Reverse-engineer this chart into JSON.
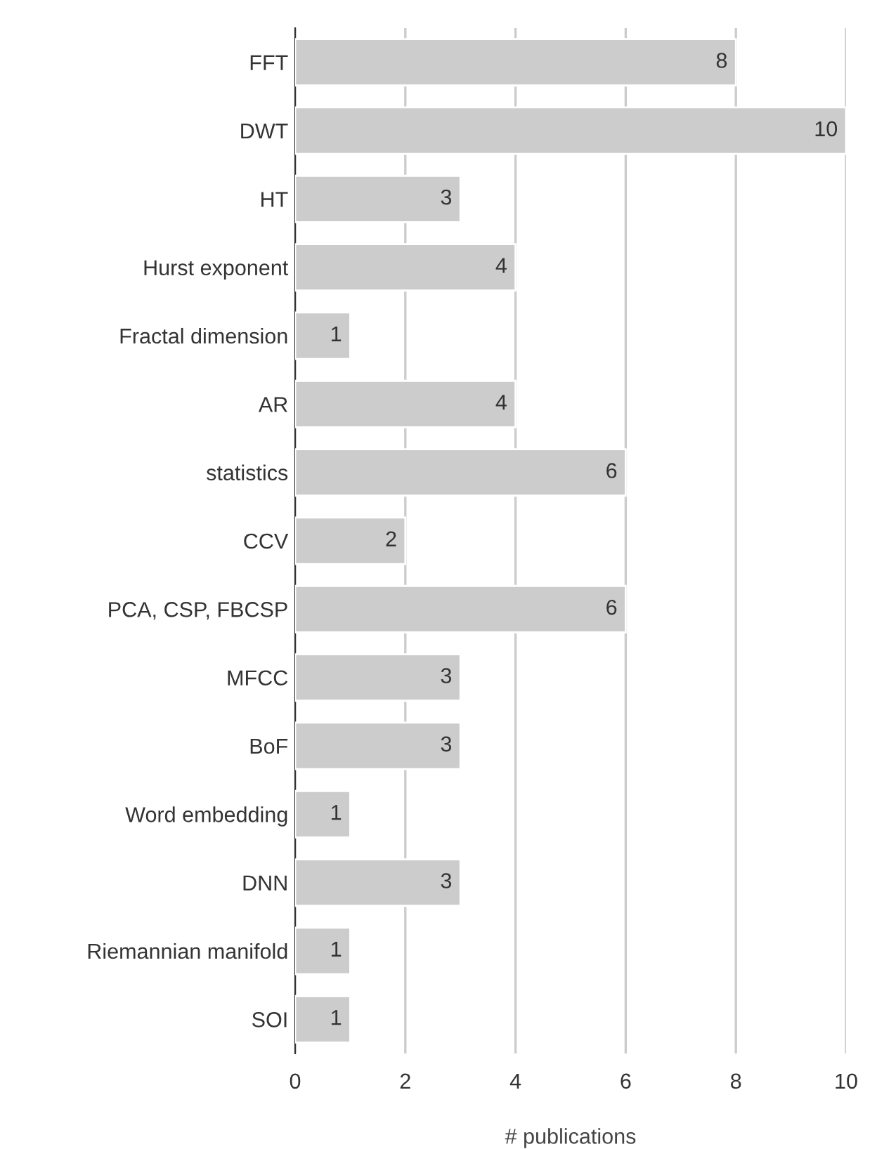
{
  "chart_data": {
    "type": "bar",
    "orientation": "horizontal",
    "xlabel": "# publications",
    "categories": [
      "FFT",
      "DWT",
      "HT",
      "Hurst exponent",
      "Fractal dimension",
      "AR",
      "statistics",
      "CCV",
      "PCA, CSP, FBCSP",
      "MFCC",
      "BoF",
      "Word embedding",
      "DNN",
      "Riemannian manifold",
      "SOI"
    ],
    "values": [
      8,
      10,
      3,
      4,
      1,
      4,
      6,
      2,
      6,
      3,
      3,
      1,
      3,
      1,
      1
    ],
    "color": "#cccccc",
    "xlim": [
      0,
      10
    ],
    "xticks": [
      0,
      2,
      4,
      6,
      8,
      10
    ],
    "grid": "x",
    "data_labels": true
  }
}
